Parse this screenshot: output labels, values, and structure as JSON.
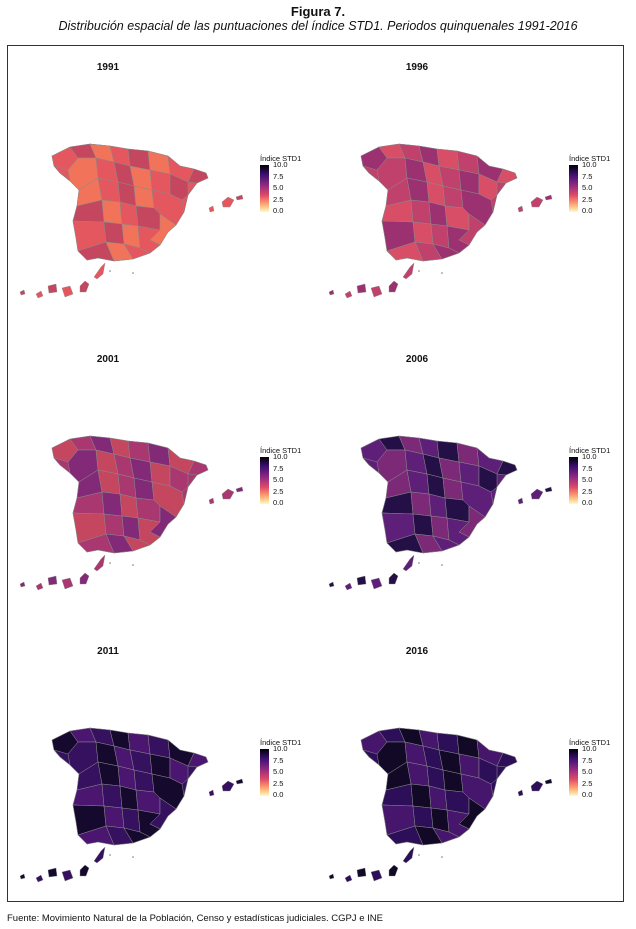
{
  "figure": {
    "title": "Figura 7.",
    "subtitle": "Distribución espacial de las puntuaciones del índice STD1. Periodos quinquenales 1991-2016"
  },
  "source": "Fuente: Movimiento Natural de la Población, Censo y estadísticas judiciales. CGPJ e INE",
  "legend": {
    "title": "Índice STD1",
    "ticks": [
      "10.0",
      "7.5",
      "5.0",
      "2.5",
      "0.0"
    ]
  },
  "panels": [
    {
      "year": "1991",
      "base": "#e5575e",
      "dark": "#c4465f",
      "light": "#f1745a"
    },
    {
      "year": "1996",
      "base": "#c0416c",
      "dark": "#9b3171",
      "light": "#d84e66"
    },
    {
      "year": "2001",
      "base": "#a8386f",
      "dark": "#822a77",
      "light": "#c4465f"
    },
    {
      "year": "2006",
      "base": "#5e1f79",
      "dark": "#241046",
      "light": "#7c2a78"
    },
    {
      "year": "2011",
      "base": "#36115f",
      "dark": "#150a2e",
      "light": "#4b1670"
    },
    {
      "year": "2016",
      "base": "#2c0f58",
      "dark": "#120927",
      "light": "#46166c"
    }
  ]
}
